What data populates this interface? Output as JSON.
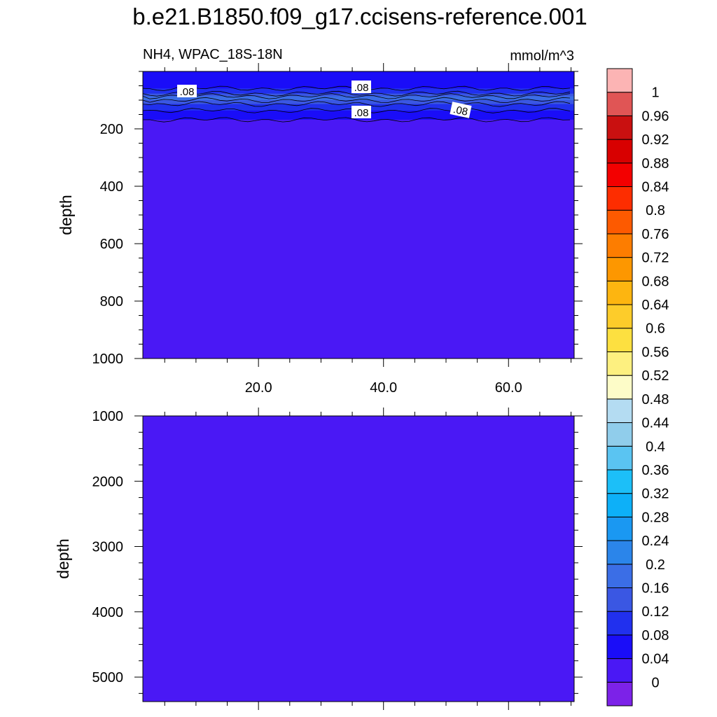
{
  "chart_data": {
    "type": "heatmap",
    "title": "b.e21.B1850.f09_g17.ccisens-reference.001",
    "variable_label": "NH4, WPAC_18S-18N",
    "units_label": "mmol/m^3",
    "colorbar": {
      "levels": [
        "0",
        "0.04",
        "0.08",
        "0.12",
        "0.16",
        "0.2",
        "0.24",
        "0.28",
        "0.32",
        "0.36",
        "0.4",
        "0.44",
        "0.48",
        "0.52",
        "0.56",
        "0.6",
        "0.64",
        "0.68",
        "0.72",
        "0.76",
        "0.8",
        "0.84",
        "0.88",
        "0.92",
        "0.96",
        "1"
      ],
      "colors": [
        "#7c22e8",
        "#4a18f5",
        "#1a0df8",
        "#2130ee",
        "#3a57e3",
        "#3b6ee6",
        "#2b85ea",
        "#1a98f2",
        "#0db0f8",
        "#1cbff8",
        "#5ac4f2",
        "#90cdeb",
        "#b4dcf2",
        "#fdfcc8",
        "#fdf080",
        "#fde040",
        "#fdcc2a",
        "#fdb510",
        "#fd9700",
        "#fd7d00",
        "#fd5a00",
        "#fd2d00",
        "#f30000",
        "#d80000",
        "#c91010",
        "#e05555",
        "#fcb4b4"
      ]
    },
    "x_axis": {
      "tick_labels": [
        "20.0",
        "40.0",
        "60.0"
      ],
      "tick_values": [
        20,
        40,
        60
      ],
      "range": [
        1.5,
        70.5
      ]
    },
    "panels": [
      {
        "ylabel": "depth",
        "ylim": [
          1000,
          0
        ],
        "yticks": [
          "200",
          "400",
          "600",
          "800",
          "1000"
        ],
        "ytick_values": [
          200,
          400,
          600,
          800,
          1000
        ],
        "contour_labels": [
          ".08",
          ".08",
          ".08",
          ".08"
        ],
        "profile_depths": [
          0,
          45,
          60,
          75,
          85,
          95,
          110,
          125,
          140,
          155,
          165,
          1000
        ],
        "profile_values": [
          0.06,
          0.07,
          0.085,
          0.125,
          0.17,
          0.17,
          0.13,
          0.085,
          0.075,
          0.055,
          0.04,
          0.02
        ]
      },
      {
        "ylabel": "depth",
        "ylim": [
          5375,
          1000
        ],
        "yticks": [
          "1000",
          "2000",
          "3000",
          "4000",
          "5000"
        ],
        "ytick_values": [
          1000,
          2000,
          3000,
          4000,
          5000
        ],
        "contour_labels": [],
        "profile_depths": [
          1000,
          5375
        ],
        "profile_values": [
          0.02,
          0.02
        ]
      }
    ]
  }
}
